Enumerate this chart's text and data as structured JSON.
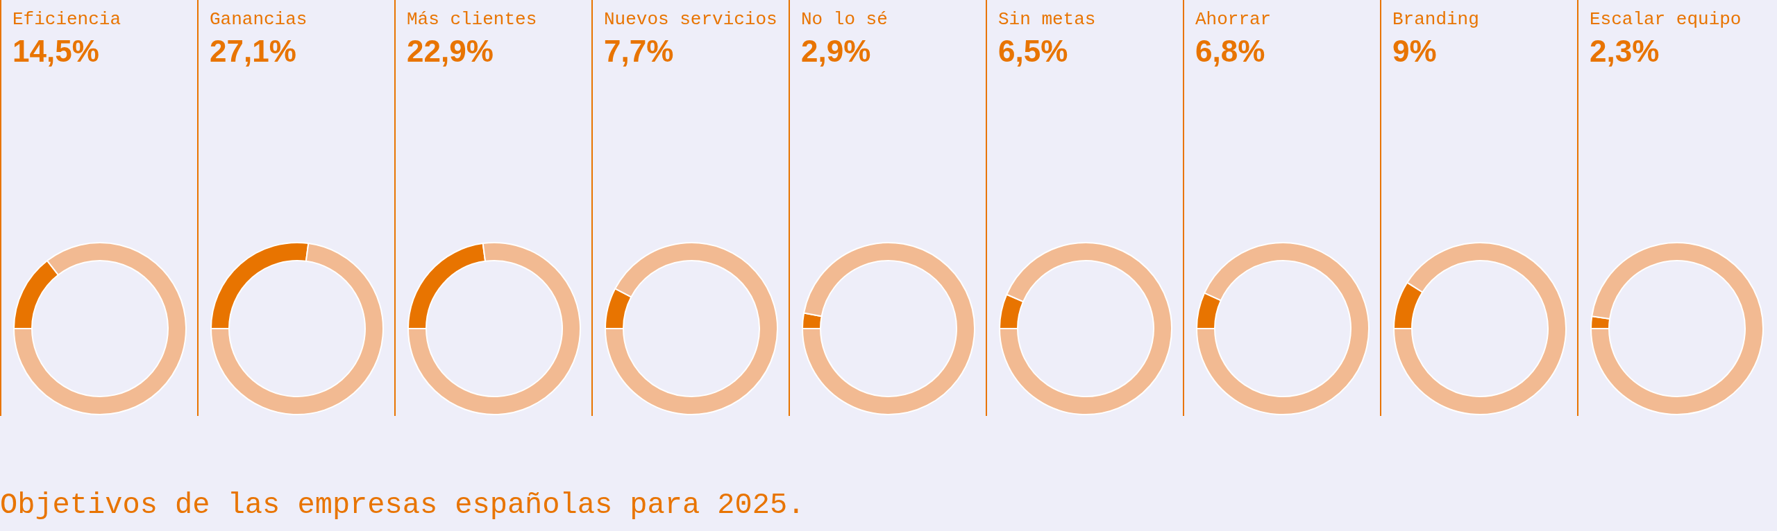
{
  "chart_data": [
    {
      "type": "donut",
      "title": "Eficiencia",
      "subtitle": "14,5%",
      "categories": [
        null,
        null
      ],
      "values": [
        14.5,
        85.5
      ],
      "colors": [
        "#e87400",
        "#f2ba92"
      ],
      "annotations": [
        "Objetivos de las empresas españolas para 2025."
      ]
    },
    {
      "type": "donut",
      "title": "Ganancias",
      "subtitle": "27,1%",
      "categories": [
        null,
        null
      ],
      "values": [
        27.1,
        72.9
      ],
      "colors": [
        "#e87400",
        "#f2ba92"
      ]
    },
    {
      "type": "donut",
      "title": "Más clientes",
      "subtitle": "22,9%",
      "categories": [
        null,
        null
      ],
      "values": [
        22.9,
        77.1
      ],
      "colors": [
        "#e87400",
        "#f2ba92"
      ]
    },
    {
      "type": "donut",
      "title": "Nuevos servicios",
      "subtitle": "7,7%",
      "categories": [
        null,
        null
      ],
      "values": [
        7.7,
        92.3
      ],
      "colors": [
        "#e87400",
        "#f2ba92"
      ]
    },
    {
      "type": "donut",
      "title": "No lo sé",
      "subtitle": "2,9%",
      "categories": [
        null,
        null
      ],
      "values": [
        2.9,
        97.1
      ],
      "colors": [
        "#e87400",
        "#f2ba92"
      ]
    },
    {
      "type": "donut",
      "title": "Sin metas",
      "subtitle": "6,5%",
      "categories": [
        null,
        null
      ],
      "values": [
        6.5,
        93.5
      ],
      "colors": [
        "#e87400",
        "#f2ba92"
      ]
    },
    {
      "type": "donut",
      "title": "Ahorrar",
      "subtitle": "6,8%",
      "categories": [
        null,
        null
      ],
      "values": [
        6.8,
        93.2
      ],
      "colors": [
        "#e87400",
        "#f2ba92"
      ]
    },
    {
      "type": "donut",
      "title": "Branding",
      "subtitle": "9%",
      "categories": [
        null,
        null
      ],
      "values": [
        9,
        91
      ],
      "colors": [
        "#e87400",
        "#f2ba92"
      ]
    },
    {
      "type": "donut",
      "title": "Escalar equipo",
      "subtitle": "2,3%",
      "categories": [
        null,
        null
      ],
      "values": [
        2.3,
        97.7
      ],
      "colors": [
        "#e87400",
        "#f2ba92"
      ]
    }
  ]
}
